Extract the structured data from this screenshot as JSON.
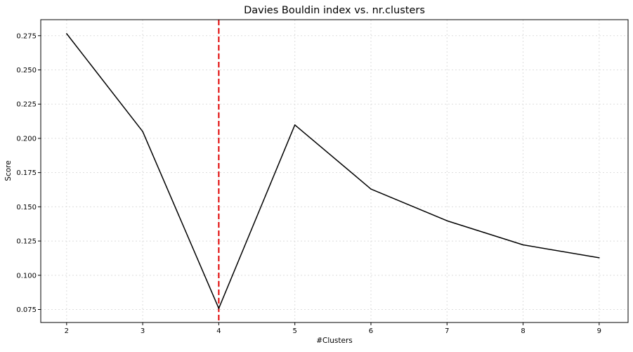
{
  "chart_data": {
    "type": "line",
    "title": "Davies Bouldin index vs. nr.clusters",
    "xlabel": "#Clusters",
    "ylabel": "Score",
    "x": [
      2,
      3,
      4,
      5,
      6,
      7,
      8,
      9
    ],
    "series": [
      {
        "values": [
          0.2765,
          0.205,
          0.0758,
          0.2098,
          0.163,
          0.1398,
          0.1222,
          0.1128
        ],
        "color": "#000000"
      }
    ],
    "x_ticks": [
      2,
      3,
      4,
      5,
      6,
      7,
      8,
      9
    ],
    "x_tick_labels": [
      "2",
      "3",
      "4",
      "5",
      "6",
      "7",
      "8",
      "9"
    ],
    "y_ticks": [
      0.075,
      0.1,
      0.125,
      0.15,
      0.175,
      0.2,
      0.225,
      0.25,
      0.275
    ],
    "y_tick_labels": [
      "0.075",
      "0.100",
      "0.125",
      "0.150",
      "0.175",
      "0.200",
      "0.225",
      "0.250",
      "0.275"
    ],
    "xlim": [
      1.66,
      9.38
    ],
    "ylim": [
      0.0655,
      0.2867
    ],
    "grid": true,
    "grid_style": "dotted",
    "grid_color": "#dddddd",
    "vline": {
      "x": 4,
      "color": "#e00000",
      "style": "dashed"
    },
    "legend": "none"
  }
}
